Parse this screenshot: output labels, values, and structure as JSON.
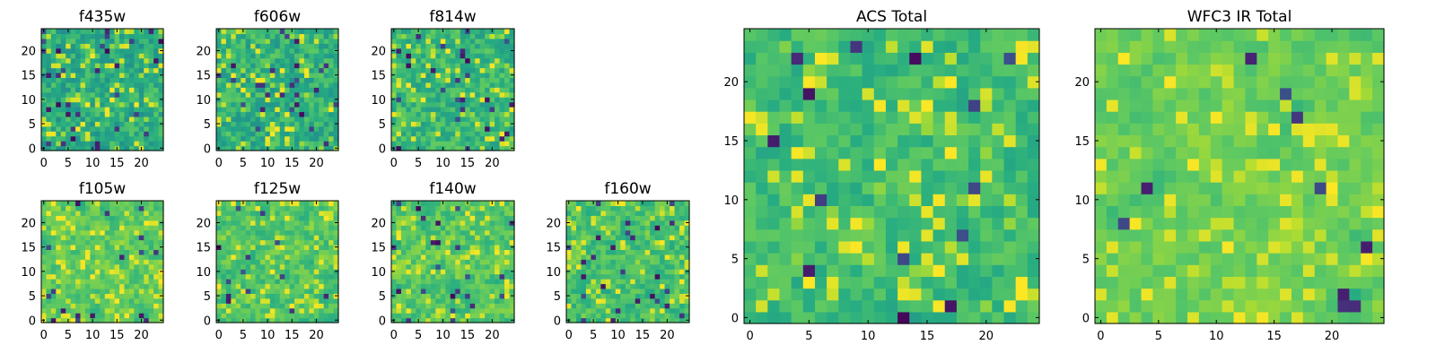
{
  "figure": {
    "colormap": "viridis",
    "grid_size": 25
  },
  "chart_data": [
    {
      "type": "heatmap",
      "title": "f435w",
      "x_ticks": [
        0,
        5,
        10,
        15,
        20
      ],
      "y_ticks": [
        0,
        5,
        10,
        15,
        20
      ],
      "xlim": [
        0,
        24
      ],
      "ylim": [
        0,
        24
      ],
      "seed": 11,
      "base": 0.62,
      "spread": 0.14,
      "dark_fraction": 0.05,
      "hot_fraction": 0.1,
      "smooth": 0.15
    },
    {
      "type": "heatmap",
      "title": "f606w",
      "x_ticks": [
        0,
        5,
        10,
        15,
        20
      ],
      "y_ticks": [
        0,
        5,
        10,
        15,
        20
      ],
      "xlim": [
        0,
        24
      ],
      "ylim": [
        0,
        24
      ],
      "seed": 23,
      "base": 0.64,
      "spread": 0.14,
      "dark_fraction": 0.04,
      "hot_fraction": 0.12,
      "smooth": 0.15
    },
    {
      "type": "heatmap",
      "title": "f814w",
      "x_ticks": [
        0,
        5,
        10,
        15,
        20
      ],
      "y_ticks": [
        0,
        5,
        10,
        15,
        20
      ],
      "xlim": [
        0,
        24
      ],
      "ylim": [
        0,
        24
      ],
      "seed": 37,
      "base": 0.66,
      "spread": 0.13,
      "dark_fraction": 0.04,
      "hot_fraction": 0.12,
      "smooth": 0.2
    },
    {
      "type": "heatmap",
      "title": "f105w",
      "x_ticks": [
        0,
        5,
        10,
        15,
        20
      ],
      "y_ticks": [
        0,
        5,
        10,
        15,
        20
      ],
      "xlim": [
        0,
        24
      ],
      "ylim": [
        0,
        24
      ],
      "seed": 41,
      "base": 0.74,
      "spread": 0.11,
      "dark_fraction": 0.03,
      "hot_fraction": 0.14,
      "smooth": 0.35
    },
    {
      "type": "heatmap",
      "title": "f125w",
      "x_ticks": [
        0,
        5,
        10,
        15,
        20
      ],
      "y_ticks": [
        0,
        5,
        10,
        15,
        20
      ],
      "xlim": [
        0,
        24
      ],
      "ylim": [
        0,
        24
      ],
      "seed": 53,
      "base": 0.72,
      "spread": 0.12,
      "dark_fraction": 0.03,
      "hot_fraction": 0.14,
      "smooth": 0.35
    },
    {
      "type": "heatmap",
      "title": "f140w",
      "x_ticks": [
        0,
        5,
        10,
        15,
        20
      ],
      "y_ticks": [
        0,
        5,
        10,
        15,
        20
      ],
      "xlim": [
        0,
        24
      ],
      "ylim": [
        0,
        24
      ],
      "seed": 67,
      "base": 0.73,
      "spread": 0.12,
      "dark_fraction": 0.03,
      "hot_fraction": 0.13,
      "smooth": 0.35
    },
    {
      "type": "heatmap",
      "title": "f160w",
      "x_ticks": [
        0,
        5,
        10,
        15,
        20
      ],
      "y_ticks": [
        0,
        5,
        10,
        15,
        20
      ],
      "xlim": [
        0,
        24
      ],
      "ylim": [
        0,
        24
      ],
      "seed": 79,
      "base": 0.7,
      "spread": 0.13,
      "dark_fraction": 0.04,
      "hot_fraction": 0.12,
      "smooth": 0.35
    },
    {
      "type": "heatmap",
      "title": "ACS Total",
      "x_ticks": [
        0,
        5,
        10,
        15,
        20
      ],
      "y_ticks": [
        0,
        5,
        10,
        15,
        20
      ],
      "xlim": [
        0,
        24
      ],
      "ylim": [
        0,
        24
      ],
      "seed": 97,
      "base": 0.68,
      "spread": 0.11,
      "dark_fraction": 0.025,
      "hot_fraction": 0.12,
      "smooth": 0.3
    },
    {
      "type": "heatmap",
      "title": "WFC3 IR Total",
      "x_ticks": [
        0,
        5,
        10,
        15,
        20
      ],
      "y_ticks": [
        0,
        5,
        10,
        15,
        20
      ],
      "xlim": [
        0,
        24
      ],
      "ylim": [
        0,
        24
      ],
      "seed": 113,
      "base": 0.76,
      "spread": 0.1,
      "dark_fraction": 0.02,
      "hot_fraction": 0.16,
      "smooth": 0.5
    }
  ]
}
